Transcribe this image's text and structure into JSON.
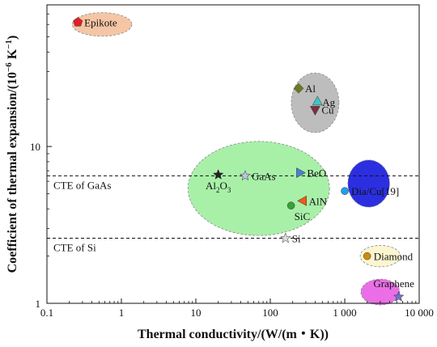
{
  "chart_data": {
    "type": "scatter",
    "title": "",
    "xlabel": "Thermal conductivity/(W/(m・K))",
    "ylabel_prefix": "Coefficient of thermal expansion/(10",
    "ylabel_exp": "−6",
    "ylabel_suffix": " K",
    "ylabel_exp2": "−1",
    "ylabel_close": ")",
    "xscale": "log",
    "yscale": "log",
    "xlim": [
      0.1,
      10000
    ],
    "ylim": [
      1,
      80
    ],
    "x_ticks": [
      {
        "value": 0.1,
        "label": "0.1"
      },
      {
        "value": 1,
        "label": "1"
      },
      {
        "value": 10,
        "label": "10"
      },
      {
        "value": 100,
        "label": "100"
      },
      {
        "value": 1000,
        "label": "1 000"
      },
      {
        "value": 10000,
        "label": "10 000"
      }
    ],
    "y_ticks": [
      {
        "value": 1,
        "label": "1"
      },
      {
        "value": 10,
        "label": "10"
      }
    ],
    "reference_lines": [
      {
        "label": "CTE of GaAs",
        "y": 6.5
      },
      {
        "label": "CTE of Si",
        "y": 2.6
      }
    ],
    "groups": [
      {
        "x": 0.55,
        "y": 60,
        "rx": 0.4,
        "ry": 0.075,
        "color": "#f5c6a5"
      },
      {
        "x": 400,
        "y": 19,
        "rx": 0.32,
        "ry": 0.19,
        "color": "#bdbdbd"
      },
      {
        "x": 70,
        "y": 5.4,
        "rx": 0.95,
        "ry": 0.3,
        "color": "#a8f0a8"
      },
      {
        "x": 2100,
        "y": 5.8,
        "rx": 0.28,
        "ry": 0.15,
        "color": "#2b2fe0"
      },
      {
        "x": 3000,
        "y": 2.0,
        "rx": 0.27,
        "ry": 0.068,
        "color": "#fbf6d0"
      },
      {
        "x": 3000,
        "y": 1.18,
        "rx": 0.26,
        "ry": 0.082,
        "color": "#ea6fe6"
      }
    ],
    "points": [
      {
        "name": "Epikote",
        "x": 0.26,
        "y": 62,
        "marker": "pentagon",
        "color": "#e0202a"
      },
      {
        "name": "Al",
        "x": 240,
        "y": 23.5,
        "marker": "diamond",
        "color": "#6b7a1e"
      },
      {
        "name": "Ag",
        "x": 430,
        "y": 19.5,
        "marker": "triangle-up",
        "color": "#3ec6c8"
      },
      {
        "name": "Cu",
        "x": 400,
        "y": 17,
        "marker": "triangle-down",
        "color": "#7a3040"
      },
      {
        "name": "Al2O3",
        "label_main": "Al",
        "label_sub1": "2",
        "label_mid": "O",
        "label_sub2": "3",
        "x": 20,
        "y": 6.6,
        "marker": "star",
        "color": "#222222"
      },
      {
        "name": "GaAs",
        "x": 46,
        "y": 6.5,
        "marker": "star",
        "color": "#c2c2e8"
      },
      {
        "name": "BeO",
        "x": 255,
        "y": 6.8,
        "marker": "triangle-right",
        "color": "#4a7fd0"
      },
      {
        "name": "AlN",
        "x": 270,
        "y": 4.5,
        "marker": "triangle-left",
        "color": "#ef5a1a"
      },
      {
        "name": "SiC",
        "x": 190,
        "y": 4.2,
        "marker": "circle",
        "color": "#3aa03a"
      },
      {
        "name": "Si",
        "x": 160,
        "y": 2.6,
        "marker": "star",
        "color": "#dcdcdc"
      },
      {
        "name": "Dia/Cu[19]",
        "x": 1000,
        "y": 5.2,
        "marker": "circle",
        "color": "#1ea0e8"
      },
      {
        "name": "Diamond",
        "x": 2000,
        "y": 2.0,
        "marker": "circle",
        "color": "#cc8a10"
      },
      {
        "name": "Graphene",
        "x": 5300,
        "y": 1.1,
        "marker": "star",
        "color": "#7070d0"
      }
    ]
  }
}
